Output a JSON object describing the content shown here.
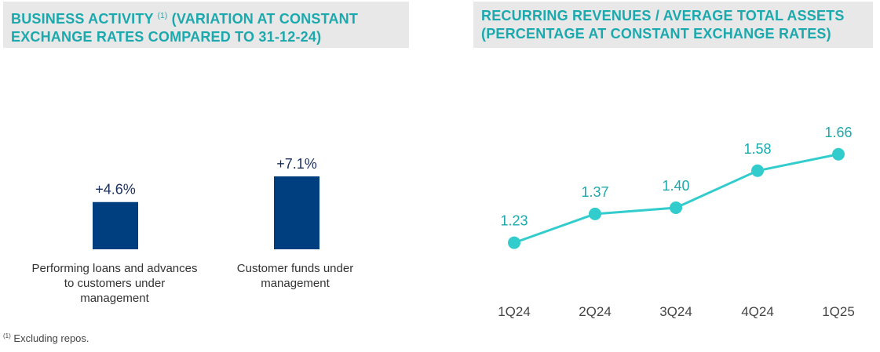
{
  "colors": {
    "teal": "#1ba9ad",
    "line": "#33cccc",
    "bar": "#003f7f",
    "title_bg": "#e8e8e8"
  },
  "footnote": {
    "marker": "(1)",
    "text": "Excluding repos."
  },
  "chart_data": [
    {
      "type": "bar",
      "title": "BUSINESS ACTIVITY",
      "title_marker": "(1)",
      "title_rest": "(VARIATION AT CONSTANT",
      "title_line2": "EXCHANGE RATES COMPARED TO 31-12-24)",
      "categories": [
        "Performing loans and advances to customers under management",
        "Customer funds under management"
      ],
      "values": [
        4.6,
        7.1
      ],
      "value_labels": [
        "+4.6%",
        "+7.1%"
      ],
      "xlabel": "",
      "ylabel": "",
      "unit": "%"
    },
    {
      "type": "line",
      "title_line1": "RECURRING REVENUES / AVERAGE TOTAL ASSETS",
      "title_line2": "(PERCENTAGE AT CONSTANT EXCHANGE RATES)",
      "categories": [
        "1Q24",
        "2Q24",
        "3Q24",
        "4Q24",
        "1Q25"
      ],
      "values": [
        1.23,
        1.37,
        1.4,
        1.58,
        1.66
      ],
      "value_labels": [
        "1.23",
        "1.37",
        "1.40",
        "1.58",
        "1.66"
      ],
      "xlabel": "",
      "ylabel": ""
    }
  ]
}
